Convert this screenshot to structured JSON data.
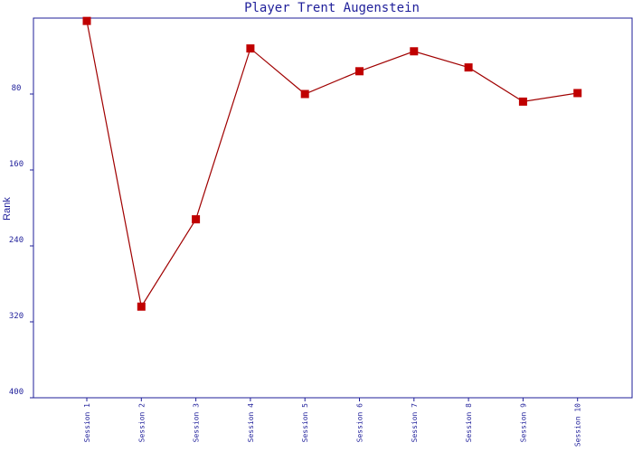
{
  "chart_data": {
    "type": "line",
    "title": "Player Trent Augenstein",
    "xlabel": "",
    "ylabel": "Rank",
    "categories": [
      "Session 1",
      "Session 2",
      "Session 3",
      "Session 4",
      "Session 5",
      "Session 6",
      "Session 7",
      "Session 8",
      "Session 9",
      "Session 10"
    ],
    "series": [
      {
        "values": [
          3,
          304,
          212,
          32,
          80,
          56,
          35,
          52,
          88,
          79
        ]
      }
    ],
    "ylim": [
      0,
      400
    ],
    "y_inverted": true,
    "yticks": [
      "80",
      "160",
      "240",
      "320",
      "400"
    ],
    "grid": false,
    "colors": {
      "line": "#a00000",
      "marker": "#c00000",
      "axis": "#1f1f9a",
      "text": "#1f1f9a"
    }
  }
}
